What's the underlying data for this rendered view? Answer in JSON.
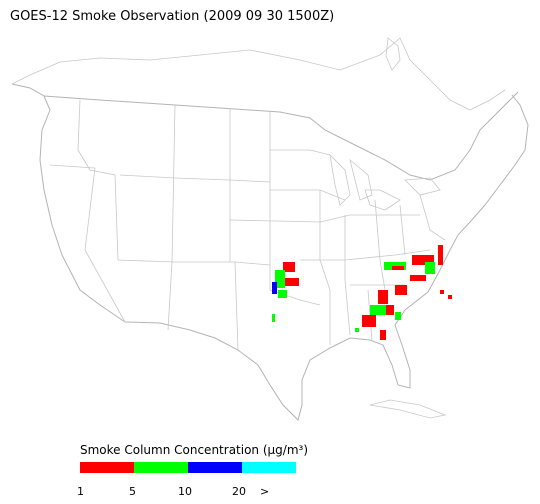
{
  "title": "GOES-12 Smoke Observation (2009 09 30  1500Z)",
  "legend": {
    "title": "Smoke Column Concentration (μg/m³)",
    "colors": [
      "#ff0000",
      "#00ff00",
      "#0000ff",
      "#00ffff"
    ],
    "labels": [
      "1",
      "5",
      "10",
      "20",
      ">"
    ]
  }
}
